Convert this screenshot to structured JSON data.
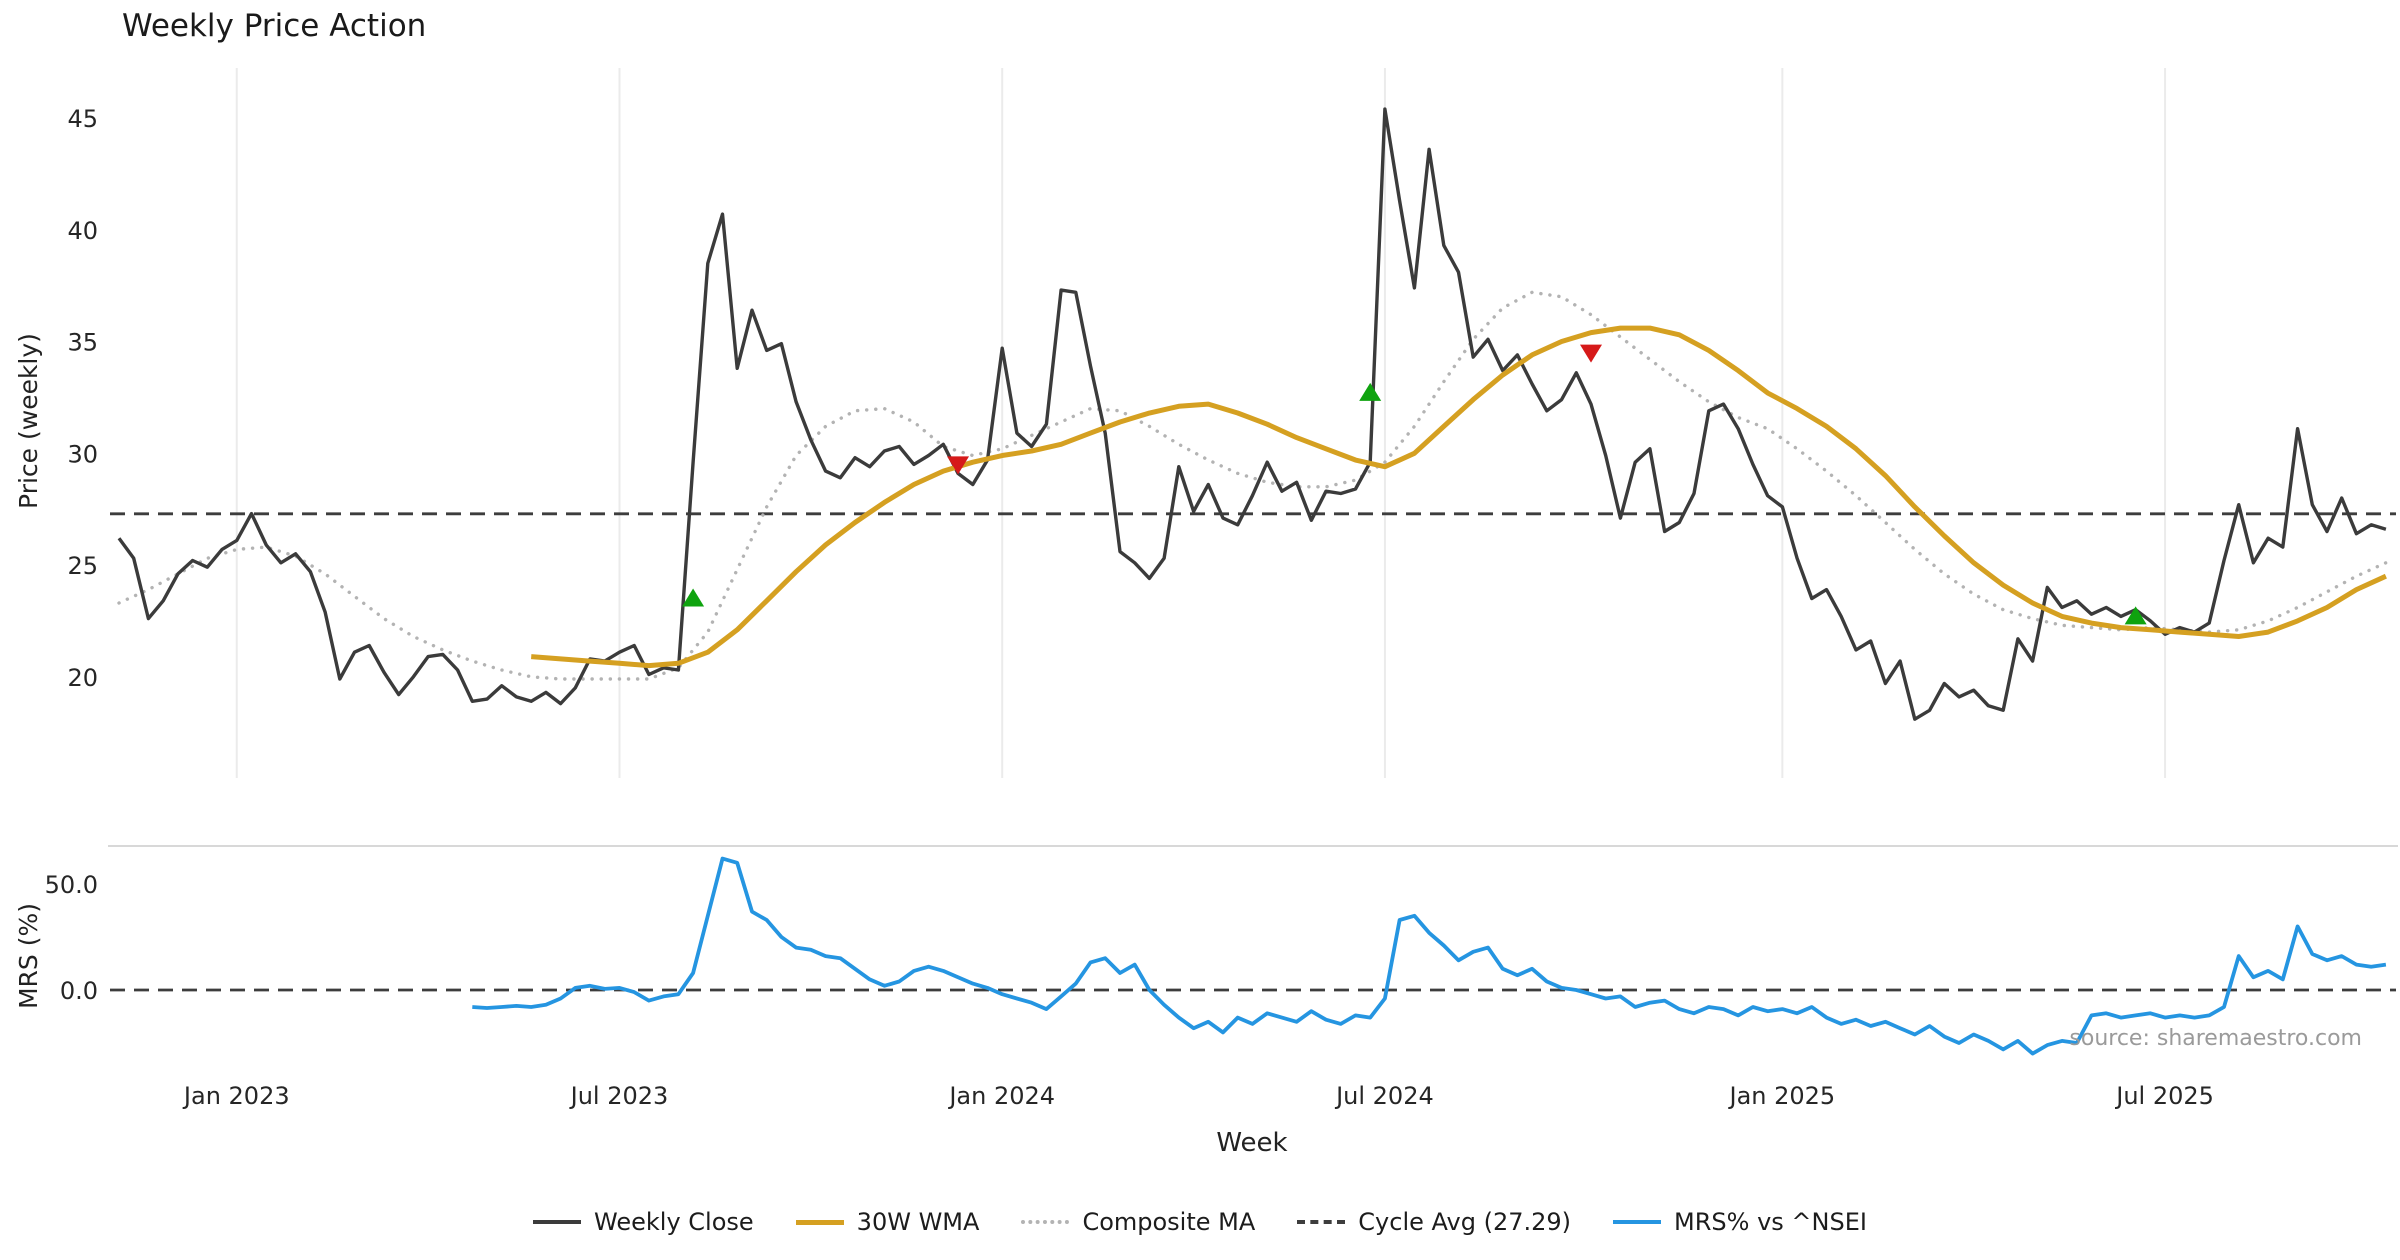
{
  "title": "Weekly Price Action",
  "xlabel": "Week",
  "source": "source: sharemaestro.com",
  "colors": {
    "close": "#3b3b3b",
    "wma": "#d5a021",
    "composite": "#b3b3b3",
    "cycle": "#3d3d3d",
    "mrs": "#2595e1",
    "buy": "#0fa30f",
    "sell": "#d61a1a",
    "grid": "#ebebeb",
    "separator": "#cccccc",
    "tick_text": "#262626"
  },
  "chart_data": {
    "type": "line",
    "x_unit": "week_index",
    "panels": {
      "price": {
        "ylabel": "Price (weekly)",
        "ytick_labels": [
          "20",
          "25",
          "30",
          "35",
          "40",
          "45"
        ],
        "ytick_values": [
          20,
          25,
          30,
          35,
          40,
          45
        ],
        "ylim": [
          17,
          47
        ]
      },
      "mrs": {
        "ylabel": "MRS (%)",
        "ytick_labels": [
          "0.0",
          "50.0"
        ],
        "ytick_values": [
          0,
          50
        ],
        "ylim": [
          -38,
          68
        ]
      }
    },
    "x_ticks": [
      {
        "label": "Jan 2023",
        "week": 8
      },
      {
        "label": "Jul 2023",
        "week": 34
      },
      {
        "label": "Jan 2024",
        "week": 60
      },
      {
        "label": "Jul 2024",
        "week": 86
      },
      {
        "label": "Jan 2025",
        "week": 113
      },
      {
        "label": "Jul 2025",
        "week": 139
      }
    ],
    "cycle_avg": 27.29,
    "mrs_zero": 0,
    "series": [
      {
        "name": "Weekly Close",
        "panel": "price",
        "start_week": 0,
        "step": 1,
        "values": [
          26.2,
          25.3,
          22.6,
          23.4,
          24.6,
          25.2,
          24.9,
          25.7,
          26.1,
          27.3,
          25.9,
          25.1,
          25.5,
          24.7,
          22.9,
          19.9,
          21.1,
          21.4,
          20.2,
          19.2,
          20.0,
          20.9,
          21.0,
          20.3,
          18.9,
          19.0,
          19.6,
          19.1,
          18.9,
          19.3,
          18.8,
          19.5,
          20.8,
          20.7,
          21.1,
          21.4,
          20.1,
          20.4,
          20.3,
          29.6,
          38.5,
          40.7,
          33.8,
          36.4,
          34.6,
          34.9,
          32.3,
          30.6,
          29.2,
          28.9,
          29.8,
          29.4,
          30.1,
          30.3,
          29.5,
          29.9,
          30.4,
          29.1,
          28.6,
          29.7,
          34.7,
          30.9,
          30.3,
          31.3,
          37.3,
          37.2,
          33.9,
          30.9,
          25.6,
          25.1,
          24.4,
          25.3,
          29.4,
          27.4,
          28.6,
          27.1,
          26.8,
          28.1,
          29.6,
          28.3,
          28.7,
          27.0,
          28.3,
          28.2,
          28.4,
          29.6,
          45.4,
          41.3,
          37.4,
          43.6,
          39.3,
          38.1,
          34.3,
          35.1,
          33.7,
          34.4,
          33.1,
          31.9,
          32.4,
          33.6,
          32.2,
          29.9,
          27.1,
          29.6,
          30.2,
          26.5,
          26.9,
          28.2,
          31.9,
          32.2,
          31.1,
          29.5,
          28.1,
          27.6,
          25.3,
          23.5,
          23.9,
          22.7,
          21.2,
          21.6,
          19.7,
          20.7,
          18.1,
          18.5,
          19.7,
          19.1,
          19.4,
          18.7,
          18.5,
          21.7,
          20.7,
          24.0,
          23.1,
          23.4,
          22.8,
          23.1,
          22.7,
          23.0,
          22.5,
          21.9,
          22.2,
          22.0,
          22.4,
          25.2,
          27.7,
          25.1,
          26.2,
          25.8,
          31.1,
          27.7,
          26.5,
          28.0,
          26.4,
          26.8,
          26.6
        ]
      },
      {
        "name": "30W WMA",
        "panel": "price",
        "start_week": 28,
        "step": 2,
        "values": [
          20.9,
          20.8,
          20.7,
          20.6,
          20.5,
          20.6,
          21.1,
          22.1,
          23.4,
          24.7,
          25.9,
          26.9,
          27.8,
          28.6,
          29.2,
          29.6,
          29.9,
          30.1,
          30.4,
          30.9,
          31.4,
          31.8,
          32.1,
          32.2,
          31.8,
          31.3,
          30.7,
          30.2,
          29.7,
          29.4,
          30.0,
          31.2,
          32.4,
          33.5,
          34.4,
          35.0,
          35.4,
          35.6,
          35.6,
          35.3,
          34.6,
          33.7,
          32.7,
          32.0,
          31.2,
          30.2,
          29.0,
          27.6,
          26.3,
          25.1,
          24.1,
          23.3,
          22.7,
          22.4,
          22.2,
          22.1,
          22.0,
          21.9,
          21.8,
          22.0,
          22.5,
          23.1,
          23.9,
          24.5
        ]
      },
      {
        "name": "Composite MA",
        "panel": "price",
        "start_week": 0,
        "step": 2,
        "values": [
          23.3,
          23.9,
          24.6,
          25.3,
          25.7,
          25.8,
          25.4,
          24.6,
          23.6,
          22.6,
          21.8,
          21.2,
          20.7,
          20.3,
          20.0,
          19.9,
          19.9,
          19.9,
          19.9,
          20.4,
          22.0,
          24.8,
          27.6,
          29.9,
          31.2,
          31.9,
          32.0,
          31.4,
          30.3,
          29.9,
          30.2,
          30.8,
          31.4,
          32.0,
          31.9,
          31.2,
          30.4,
          29.7,
          29.1,
          28.7,
          28.5,
          28.5,
          28.8,
          29.6,
          31.2,
          33.2,
          35.1,
          36.5,
          37.2,
          37.0,
          36.2,
          35.2,
          34.2,
          33.2,
          32.3,
          31.6,
          31.1,
          30.2,
          29.2,
          28.1,
          26.9,
          25.7,
          24.6,
          23.7,
          23.0,
          22.6,
          22.3,
          22.2,
          22.1,
          22.2,
          22.1,
          22.0,
          22.1,
          22.5,
          23.1,
          23.8,
          24.5,
          25.1
        ]
      },
      {
        "name": "MRS% vs ^NSEI",
        "panel": "mrs",
        "start_week": 24,
        "step": 1,
        "values": [
          -8,
          -8.5,
          -8,
          -7.5,
          -8,
          -7,
          -4,
          1,
          2,
          0.5,
          1,
          -1,
          -5,
          -3,
          -2,
          8,
          35,
          62,
          60,
          37,
          33,
          25,
          20,
          19,
          16,
          15,
          10,
          5,
          2,
          4,
          9,
          11,
          9,
          6,
          3,
          1,
          -2,
          -4,
          -6,
          -9,
          -3,
          3,
          13,
          15,
          8,
          12,
          0,
          -7,
          -13,
          -18,
          -15,
          -20,
          -13,
          -16,
          -11,
          -13,
          -15,
          -10,
          -14,
          -16,
          -12,
          -13,
          -4,
          33,
          35,
          27,
          21,
          14,
          18,
          20,
          10,
          7,
          10,
          4,
          1,
          0,
          -2,
          -4,
          -3,
          -8,
          -6,
          -5,
          -9,
          -11,
          -8,
          -9,
          -12,
          -8,
          -10,
          -9,
          -11,
          -8,
          -13,
          -16,
          -14,
          -17,
          -15,
          -18,
          -21,
          -17,
          -22,
          -25,
          -21,
          -24,
          -28,
          -24,
          -30,
          -26,
          -24,
          -25,
          -12,
          -11,
          -13,
          -12,
          -11,
          -13,
          -12,
          -13,
          -12,
          -8,
          16,
          6,
          9,
          5,
          30,
          17,
          14,
          16,
          12,
          11,
          12
        ]
      }
    ],
    "markers": {
      "buy": [
        {
          "week": 39,
          "price": 23.5
        },
        {
          "week": 85,
          "price": 32.7
        },
        {
          "week": 137,
          "price": 22.7
        }
      ],
      "sell": [
        {
          "week": 57,
          "price": 29.5
        },
        {
          "week": 100,
          "price": 34.5
        }
      ]
    },
    "legend": [
      {
        "label": "Weekly Close",
        "key": "close"
      },
      {
        "label": "30W WMA",
        "key": "wma"
      },
      {
        "label": "Composite MA",
        "key": "composite"
      },
      {
        "label": "Cycle Avg (27.29)",
        "key": "cycle"
      },
      {
        "label": "MRS% vs ^NSEI",
        "key": "mrs"
      }
    ]
  }
}
